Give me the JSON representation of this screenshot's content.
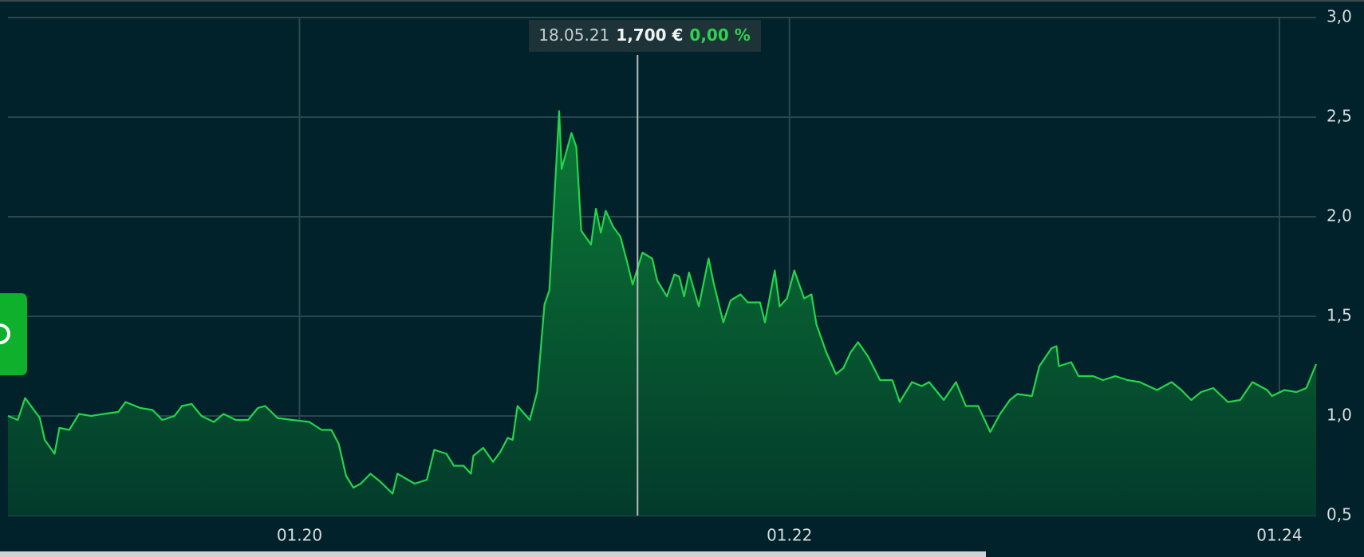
{
  "chart_data": {
    "type": "area",
    "x": [
      2018.81,
      2018.85,
      2018.88,
      2018.94,
      2018.96,
      2019.0,
      2019.02,
      2019.06,
      2019.1,
      2019.15,
      2019.2,
      2019.26,
      2019.29,
      2019.35,
      2019.4,
      2019.44,
      2019.49,
      2019.52,
      2019.56,
      2019.6,
      2019.65,
      2019.69,
      2019.74,
      2019.79,
      2019.83,
      2019.86,
      2019.91,
      2019.97,
      2020.04,
      2020.09,
      2020.13,
      2020.16,
      2020.19,
      2020.22,
      2020.25,
      2020.29,
      2020.33,
      2020.38,
      2020.4,
      2020.47,
      2020.52,
      2020.55,
      2020.6,
      2020.63,
      2020.67,
      2020.7,
      2020.71,
      2020.75,
      2020.79,
      2020.82,
      2020.85,
      2020.87,
      2020.89,
      2020.94,
      2020.97,
      2021.0,
      2021.02,
      2021.06,
      2021.07,
      2021.11,
      2021.13,
      2021.15,
      2021.19,
      2021.21,
      2021.23,
      2021.25,
      2021.28,
      2021.31,
      2021.34,
      2021.36,
      2021.4,
      2021.44,
      2021.46,
      2021.5,
      2021.53,
      2021.55,
      2021.57,
      2021.59,
      2021.63,
      2021.67,
      2021.69,
      2021.73,
      2021.76,
      2021.8,
      2021.83,
      2021.88,
      2021.9,
      2021.94,
      2021.96,
      2021.99,
      2022.02,
      2022.06,
      2022.09,
      2022.11,
      2022.15,
      2022.19,
      2022.22,
      2022.25,
      2022.28,
      2022.32,
      2022.37,
      2022.42,
      2022.45,
      2022.5,
      2022.54,
      2022.57,
      2022.63,
      2022.68,
      2022.72,
      2022.77,
      2022.82,
      2022.86,
      2022.9,
      2022.93,
      2022.99,
      2023.02,
      2023.07,
      2023.09,
      2023.1,
      2023.15,
      2023.18,
      2023.24,
      2023.28,
      2023.33,
      2023.38,
      2023.43,
      2023.5,
      2023.56,
      2023.6,
      2023.64,
      2023.68,
      2023.73,
      2023.79,
      2023.84,
      2023.89,
      2023.95,
      2023.97,
      2024.02,
      2024.07,
      2024.11,
      2024.15
    ],
    "series": [
      {
        "color": "#22d64b",
        "values": [
          1.0,
          0.98,
          1.09,
          0.99,
          0.88,
          0.81,
          0.94,
          0.93,
          1.01,
          1.0,
          1.01,
          1.02,
          1.07,
          1.04,
          1.03,
          0.98,
          1.0,
          1.05,
          1.06,
          1.0,
          0.97,
          1.01,
          0.98,
          0.98,
          1.04,
          1.05,
          0.99,
          0.98,
          0.97,
          0.93,
          0.93,
          0.86,
          0.7,
          0.64,
          0.66,
          0.71,
          0.67,
          0.61,
          0.71,
          0.66,
          0.68,
          0.83,
          0.81,
          0.75,
          0.75,
          0.71,
          0.8,
          0.84,
          0.77,
          0.82,
          0.89,
          0.88,
          1.05,
          0.98,
          1.12,
          1.56,
          1.63,
          2.53,
          2.24,
          2.42,
          2.35,
          1.93,
          1.86,
          2.04,
          1.92,
          2.03,
          1.95,
          1.9,
          1.76,
          1.66,
          1.82,
          1.79,
          1.68,
          1.6,
          1.71,
          1.7,
          1.6,
          1.72,
          1.55,
          1.79,
          1.67,
          1.47,
          1.58,
          1.61,
          1.57,
          1.57,
          1.47,
          1.73,
          1.55,
          1.59,
          1.73,
          1.59,
          1.61,
          1.46,
          1.32,
          1.21,
          1.24,
          1.32,
          1.37,
          1.3,
          1.18,
          1.18,
          1.07,
          1.17,
          1.15,
          1.17,
          1.08,
          1.17,
          1.05,
          1.05,
          0.92,
          1.01,
          1.08,
          1.11,
          1.1,
          1.25,
          1.34,
          1.35,
          1.25,
          1.27,
          1.2,
          1.2,
          1.18,
          1.2,
          1.18,
          1.17,
          1.13,
          1.17,
          1.13,
          1.08,
          1.12,
          1.14,
          1.07,
          1.08,
          1.17,
          1.13,
          1.1,
          1.13,
          1.12,
          1.14,
          1.26
        ]
      }
    ],
    "xlim": [
      2018.81,
      2024.15
    ],
    "xticks": [
      {
        "value": 2020,
        "label": "01.20"
      },
      {
        "value": 2022,
        "label": "01.22"
      },
      {
        "value": 2024,
        "label": "01.24"
      }
    ],
    "ylim": [
      0.5,
      3.0
    ],
    "yticks": [
      {
        "value": 0.5,
        "label": "0,5"
      },
      {
        "value": 1.0,
        "label": "1,0"
      },
      {
        "value": 1.5,
        "label": "1,5"
      },
      {
        "value": 2.0,
        "label": "2,0"
      },
      {
        "value": 2.5,
        "label": "2,5"
      },
      {
        "value": 3.0,
        "label": "3,0"
      }
    ],
    "grid": true,
    "cursor": {
      "x": 2021.38,
      "date": "18.05.21",
      "price": "1,700 €",
      "change": "0,00 %"
    }
  }
}
